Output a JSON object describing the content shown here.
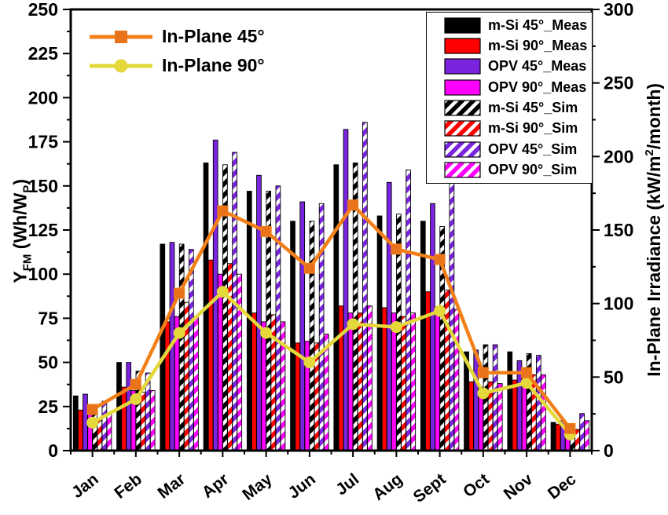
{
  "chart_data": {
    "type": "bar+line",
    "categories": [
      "Jan",
      "Feb",
      "Mar",
      "Apr",
      "May",
      "Jun",
      "Jul",
      "Aug",
      "Sept",
      "Oct",
      "Nov",
      "Dec"
    ],
    "bar_series": [
      {
        "name": "m-Si 45°_Meas",
        "color": "#000000",
        "hatch": false,
        "values": [
          31,
          50,
          117,
          163,
          147,
          130,
          162,
          133,
          130,
          56,
          56,
          16
        ]
      },
      {
        "name": "m-Si 90°_Meas",
        "color": "#FF0000",
        "hatch": false,
        "values": [
          23,
          36,
          73,
          108,
          78,
          61,
          82,
          81,
          90,
          39,
          40,
          15
        ]
      },
      {
        "name": "OPV 45°_Meas",
        "color": "#7B24E0",
        "hatch": false,
        "values": [
          32,
          50,
          118,
          176,
          156,
          141,
          182,
          152,
          140,
          57,
          51,
          17
        ]
      },
      {
        "name": "OPV 90°_Meas",
        "color": "#FF00FF",
        "hatch": false,
        "values": [
          21,
          34,
          76,
          100,
          73,
          62,
          78,
          78,
          80,
          36,
          43,
          12
        ]
      },
      {
        "name": "m-Si 45°_Sim",
        "color": "#000000",
        "hatch": true,
        "values": [
          26,
          45,
          117,
          162,
          147,
          130,
          163,
          134,
          127,
          60,
          55,
          13
        ]
      },
      {
        "name": "m-Si 90°_Sim",
        "color": "#FF0000",
        "hatch": true,
        "values": [
          17,
          33,
          84,
          106,
          77,
          61,
          78,
          76,
          91,
          39,
          43,
          12
        ]
      },
      {
        "name": "OPV 45°_Sim",
        "color": "#7B24E0",
        "hatch": true,
        "values": [
          28,
          44,
          114,
          169,
          150,
          140,
          186,
          159,
          155,
          60,
          54,
          21
        ]
      },
      {
        "name": "OPV 90°_Sim",
        "color": "#FF00FF",
        "hatch": true,
        "values": [
          21,
          34,
          76,
          100,
          73,
          66,
          82,
          78,
          80,
          38,
          43,
          17
        ]
      }
    ],
    "line_series": [
      {
        "name": "In-Plane 45°",
        "color": "#F28019",
        "marker_color": "#E8731A",
        "marker": "square",
        "axis": "right",
        "values": [
          28,
          45,
          107,
          163,
          149,
          124,
          167,
          137,
          130,
          53,
          53,
          15
        ]
      },
      {
        "name": "In-Plane 90°",
        "color": "#E4D83B",
        "marker_color": "#E4D83B",
        "marker": "circle",
        "axis": "right",
        "values": [
          19,
          35,
          80,
          108,
          80,
          60,
          86,
          84,
          95,
          39,
          46,
          11
        ]
      }
    ],
    "left_axis": {
      "label": "Y_FM (Wh/W_P)",
      "lim": [
        0,
        250
      ],
      "ticks": [
        0,
        25,
        50,
        75,
        100,
        125,
        150,
        175,
        200,
        225,
        250
      ],
      "minor_step": 12.5
    },
    "right_axis": {
      "label": "In-Plane Irradiance (kW/m2/month)",
      "lim": [
        0,
        300
      ],
      "ticks": [
        0,
        50,
        100,
        150,
        200,
        250,
        300
      ],
      "minor_step": 25
    },
    "legend_lines_position": "top-left",
    "legend_bars_position": "top-right",
    "grid": false
  },
  "labels": {
    "left_title": {
      "p1": "Y",
      "sub1": "FM",
      "p2": " (Wh/W",
      "sub2": "P",
      "p3": ")"
    },
    "right_title": {
      "p1": "In-Plane Irradiance (kW/m",
      "sup1": "2",
      "p2": "/month)"
    }
  }
}
